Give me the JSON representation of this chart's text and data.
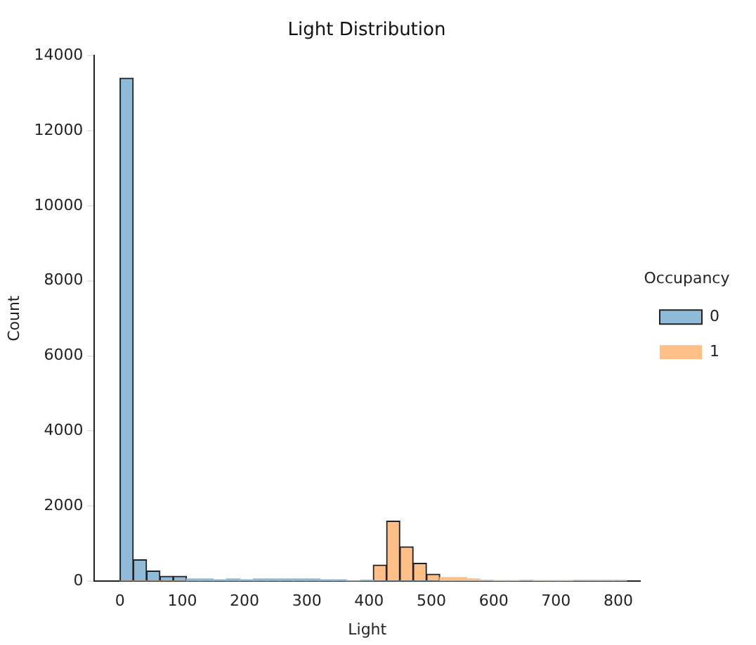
{
  "chart_data": {
    "type": "histogram",
    "title": "Light Distribution",
    "xlabel": "Light",
    "ylabel": "Count",
    "legend_title": "Occupancy",
    "legend": "right",
    "grid": false,
    "bins": [
      0,
      21.4,
      42.8,
      64.2,
      85.6,
      107,
      128.4,
      149.8,
      171.2,
      192.6,
      214,
      235.4,
      256.8,
      278.2,
      299.6,
      321,
      342.4,
      363.8,
      385.2,
      406.6,
      428,
      449.4,
      470.8,
      492.2,
      513.6,
      535,
      556.4,
      577.8,
      599.2,
      620.6,
      642,
      663.4,
      684.8,
      706.2,
      727.6,
      749,
      770.4,
      791.8,
      813.2
    ],
    "series": [
      {
        "name": "0",
        "color": "#8fbbd9",
        "values": [
          13400,
          570,
          270,
          130,
          130,
          60,
          60,
          40,
          60,
          40,
          60,
          60,
          60,
          60,
          60,
          40,
          40,
          0,
          30,
          0,
          0,
          0,
          0,
          0,
          0,
          0,
          0,
          0,
          0,
          0,
          0,
          0,
          0,
          0,
          0,
          0,
          0,
          0
        ]
      },
      {
        "name": "1",
        "color": "#ffbf86",
        "values": [
          0,
          0,
          0,
          0,
          0,
          0,
          0,
          0,
          0,
          0,
          0,
          0,
          0,
          0,
          0,
          0,
          0,
          0,
          0,
          430,
          1600,
          920,
          480,
          190,
          100,
          100,
          60,
          30,
          10,
          10,
          30,
          10,
          10,
          10,
          30,
          30,
          30,
          30
        ]
      }
    ],
    "xlim": [
      -41,
      835
    ],
    "xticks": [
      0,
      100,
      200,
      300,
      400,
      500,
      600,
      700,
      800
    ],
    "ylim": [
      0,
      14000
    ],
    "yticks": [
      0,
      2000,
      4000,
      6000,
      8000,
      10000,
      12000,
      14000
    ]
  }
}
